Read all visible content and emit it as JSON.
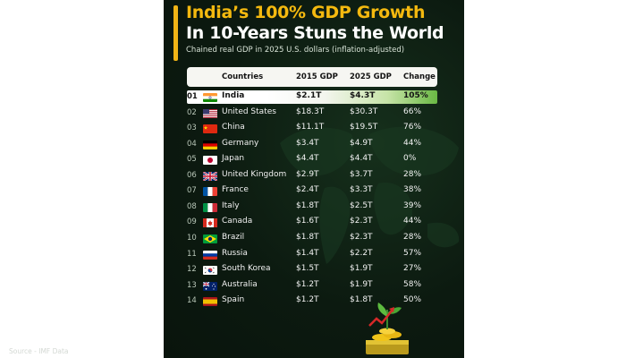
{
  "title_line1": "India’s 100% GDP Growth",
  "title_line2": "In 10-Years Stuns the World",
  "subtitle": "Chained real GDP in 2025 U.S. dollars (inflation-adjusted)",
  "headers": {
    "country": "Countries",
    "gdp2015": "2015 GDP",
    "gdp2025": "2025 GDP",
    "change": "Change"
  },
  "source": "Source - IMF Data",
  "colors": {
    "background": "#0c1a10",
    "title_accent": "#f4b90f",
    "highlight_green": "#6ab844"
  },
  "rows": [
    {
      "rank": "01",
      "country": "India",
      "flag": "india-flag",
      "gdp2015": "$2.1T",
      "gdp2025": "$4.3T",
      "change": "105%"
    },
    {
      "rank": "02",
      "country": "United States",
      "flag": "usa-flag",
      "gdp2015": "$18.3T",
      "gdp2025": "$30.3T",
      "change": "66%"
    },
    {
      "rank": "03",
      "country": "China",
      "flag": "china-flag",
      "gdp2015": "$11.1T",
      "gdp2025": "$19.5T",
      "change": "76%"
    },
    {
      "rank": "04",
      "country": "Germany",
      "flag": "germany-flag",
      "gdp2015": "$3.4T",
      "gdp2025": "$4.9T",
      "change": "44%"
    },
    {
      "rank": "05",
      "country": "Japan",
      "flag": "japan-flag",
      "gdp2015": "$4.4T",
      "gdp2025": "$4.4T",
      "change": "0%"
    },
    {
      "rank": "06",
      "country": "United Kingdom",
      "flag": "uk-flag",
      "gdp2015": "$2.9T",
      "gdp2025": "$3.7T",
      "change": "28%"
    },
    {
      "rank": "07",
      "country": "France",
      "flag": "france-flag",
      "gdp2015": "$2.4T",
      "gdp2025": "$3.3T",
      "change": "38%"
    },
    {
      "rank": "08",
      "country": "Italy",
      "flag": "italy-flag",
      "gdp2015": "$1.8T",
      "gdp2025": "$2.5T",
      "change": "39%"
    },
    {
      "rank": "09",
      "country": "Canada",
      "flag": "canada-flag",
      "gdp2015": "$1.6T",
      "gdp2025": "$2.3T",
      "change": "44%"
    },
    {
      "rank": "10",
      "country": "Brazil",
      "flag": "brazil-flag",
      "gdp2015": "$1.8T",
      "gdp2025": "$2.3T",
      "change": "28%"
    },
    {
      "rank": "11",
      "country": "Russia",
      "flag": "russia-flag",
      "gdp2015": "$1.4T",
      "gdp2025": "$2.2T",
      "change": "57%"
    },
    {
      "rank": "12",
      "country": "South Korea",
      "flag": "south-korea-flag",
      "gdp2015": "$1.5T",
      "gdp2025": "$1.9T",
      "change": "27%"
    },
    {
      "rank": "13",
      "country": "Australia",
      "flag": "australia-flag",
      "gdp2015": "$1.2T",
      "gdp2025": "$1.9T",
      "change": "58%"
    },
    {
      "rank": "14",
      "country": "Spain",
      "flag": "spain-flag",
      "gdp2015": "$1.2T",
      "gdp2025": "$1.8T",
      "change": "50%"
    }
  ],
  "chart_data": {
    "type": "table",
    "title": "India’s 100% GDP Growth In 10-Years Stuns the World",
    "subtitle": "Chained real GDP in 2025 U.S. dollars (inflation-adjusted)",
    "columns": [
      "Countries",
      "2015 GDP",
      "2025 GDP",
      "Change"
    ],
    "categories": [
      "India",
      "United States",
      "China",
      "Germany",
      "Japan",
      "United Kingdom",
      "France",
      "Italy",
      "Canada",
      "Brazil",
      "Russia",
      "South Korea",
      "Australia",
      "Spain"
    ],
    "series": [
      {
        "name": "2015 GDP",
        "values": [
          2.1,
          18.3,
          11.1,
          3.4,
          4.4,
          2.9,
          2.4,
          1.8,
          1.6,
          1.8,
          1.4,
          1.5,
          1.2,
          1.2
        ]
      },
      {
        "name": "2025 GDP",
        "values": [
          4.3,
          30.3,
          19.5,
          4.9,
          4.4,
          3.7,
          3.3,
          2.5,
          2.3,
          2.3,
          2.2,
          1.9,
          1.9,
          1.8
        ]
      },
      {
        "name": "Change",
        "values": [
          105,
          66,
          76,
          44,
          0,
          28,
          38,
          39,
          44,
          28,
          57,
          27,
          58,
          50
        ]
      }
    ],
    "source": "Source - IMF Data"
  }
}
